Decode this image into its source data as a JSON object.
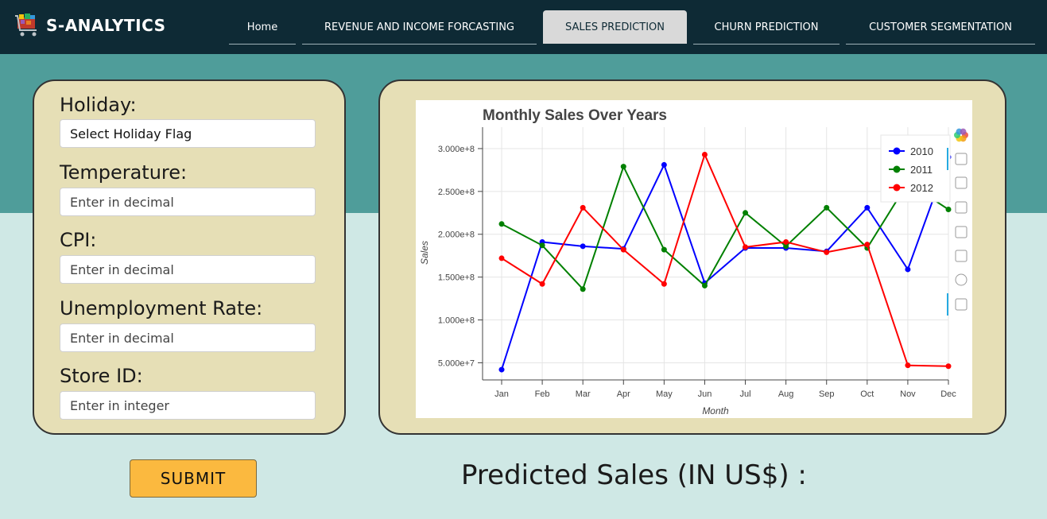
{
  "brand": {
    "name": "S-ANALYTICS"
  },
  "nav": {
    "items": [
      {
        "label": "Home"
      },
      {
        "label": "REVENUE AND INCOME FORCASTING"
      },
      {
        "label": "SALES PREDICTION"
      },
      {
        "label": "CHURN PREDICTION"
      },
      {
        "label": "CUSTOMER SEGMENTATION"
      }
    ],
    "active": "SALES PREDICTION"
  },
  "form": {
    "holiday": {
      "label": "Holiday:",
      "value": "Select Holiday Flag"
    },
    "temperature": {
      "label": "Temperature:",
      "placeholder": "Enter in decimal"
    },
    "cpi": {
      "label": "CPI:",
      "placeholder": "Enter in decimal"
    },
    "unemployment": {
      "label": "Unemployment Rate:",
      "placeholder": "Enter in decimal"
    },
    "store_id": {
      "label": "Store ID:",
      "placeholder": "Enter in integer"
    }
  },
  "submit_label": "SUBMIT",
  "result": {
    "label": "Predicted Sales (IN US$) :"
  },
  "colors": {
    "accent": "#fbb93f",
    "navbar": "#0e2a35",
    "teal": "#4f9d9a",
    "panel": "#e6dfb6"
  },
  "chart_toolbar": [
    "bokeh-logo-icon",
    "pan-icon",
    "box-zoom-icon",
    "wheel-zoom-icon",
    "save-icon",
    "reset-icon",
    "help-icon",
    "hover-icon"
  ],
  "chart_data": {
    "type": "line",
    "title": "Monthly Sales Over Years",
    "xlabel": "Month",
    "ylabel": "Sales",
    "categories": [
      "Jan",
      "Feb",
      "Mar",
      "Apr",
      "May",
      "Jun",
      "Jul",
      "Aug",
      "Sep",
      "Oct",
      "Nov",
      "Dec"
    ],
    "yticks": [
      50000000,
      100000000,
      150000000,
      200000000,
      250000000,
      300000000
    ],
    "ytick_labels": [
      "5.000e+7",
      "1.000e+8",
      "1.500e+8",
      "2.000e+8",
      "2.500e+8",
      "3.000e+8"
    ],
    "ylim": [
      30000000,
      325000000
    ],
    "grid": true,
    "legend_position": "top-right",
    "series": [
      {
        "name": "2010",
        "color": "#0000ff",
        "values": [
          42000000,
          191000000,
          186000000,
          183000000,
          281000000,
          143000000,
          184000000,
          184000000,
          180000000,
          231000000,
          159000000,
          290000000
        ]
      },
      {
        "name": "2011",
        "color": "#008000",
        "values": [
          212000000,
          187000000,
          136000000,
          279000000,
          182000000,
          140000000,
          225000000,
          186000000,
          231000000,
          184000000,
          260000000,
          229000000
        ]
      },
      {
        "name": "2012",
        "color": "#ff0000",
        "values": [
          172000000,
          142000000,
          231000000,
          182000000,
          142000000,
          293000000,
          185000000,
          191000000,
          179000000,
          188000000,
          47000000,
          46000000
        ]
      }
    ]
  }
}
